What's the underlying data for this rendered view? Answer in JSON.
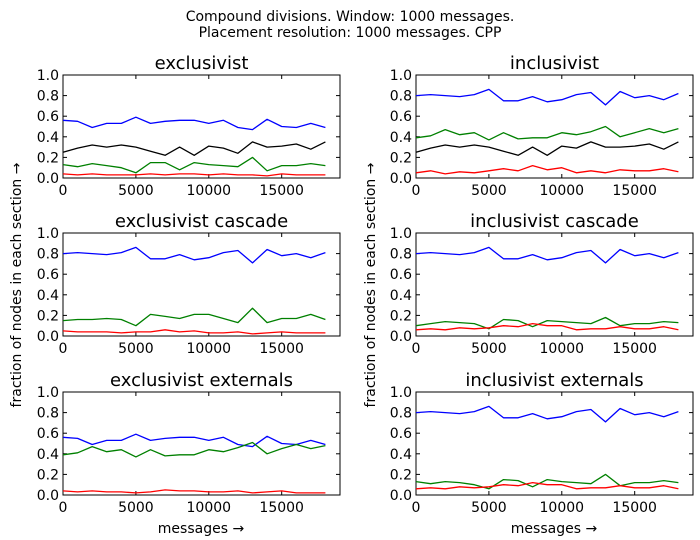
{
  "figure": {
    "title_line1": "Compound divisions. Window: 1000 messages.",
    "title_line2": "Placement resolution: 1000 messages. CPP",
    "ylabel_left": "fraction of nodes in each section  →",
    "ylabel_right": "fraction of nodes in each section  →",
    "xlabel_left": "messages  →",
    "xlabel_right": "messages  →"
  },
  "colors": {
    "blue": "#0000ff",
    "green": "#008000",
    "red": "#ff0000",
    "black": "#000000"
  },
  "chart_data": [
    {
      "type": "line",
      "title": "exclusivist",
      "xlim": [
        0,
        19000
      ],
      "ylim": [
        0,
        1
      ],
      "xticks": [
        "0",
        "5000",
        "10000",
        "15000"
      ],
      "yticks": [
        "0.0",
        "0.2",
        "0.4",
        "0.6",
        "0.8",
        "1.0"
      ],
      "x": [
        0,
        1000,
        2000,
        3000,
        4000,
        5000,
        6000,
        7000,
        8000,
        9000,
        10000,
        11000,
        12000,
        13000,
        14000,
        15000,
        16000,
        17000,
        18000
      ],
      "series": [
        {
          "color": "blue",
          "values": [
            0.56,
            0.55,
            0.49,
            0.53,
            0.53,
            0.59,
            0.53,
            0.55,
            0.56,
            0.56,
            0.53,
            0.56,
            0.49,
            0.47,
            0.57,
            0.5,
            0.49,
            0.53,
            0.49
          ]
        },
        {
          "color": "black",
          "values": [
            0.25,
            0.29,
            0.32,
            0.3,
            0.32,
            0.3,
            0.26,
            0.22,
            0.3,
            0.22,
            0.31,
            0.29,
            0.24,
            0.35,
            0.3,
            0.31,
            0.33,
            0.28,
            0.35
          ]
        },
        {
          "color": "green",
          "values": [
            0.13,
            0.11,
            0.14,
            0.12,
            0.1,
            0.05,
            0.15,
            0.15,
            0.08,
            0.15,
            0.13,
            0.12,
            0.11,
            0.2,
            0.07,
            0.12,
            0.12,
            0.14,
            0.12
          ]
        },
        {
          "color": "red",
          "values": [
            0.04,
            0.03,
            0.04,
            0.03,
            0.03,
            0.03,
            0.04,
            0.03,
            0.04,
            0.04,
            0.03,
            0.04,
            0.03,
            0.03,
            0.02,
            0.04,
            0.03,
            0.03,
            0.03
          ]
        }
      ]
    },
    {
      "type": "line",
      "title": "inclusivist",
      "xlim": [
        0,
        19000
      ],
      "ylim": [
        0,
        1
      ],
      "xticks": [
        "0",
        "5000",
        "10000",
        "15000"
      ],
      "yticks": [
        "0.0",
        "0.2",
        "0.4",
        "0.6",
        "0.8",
        "1.0"
      ],
      "x": [
        0,
        1000,
        2000,
        3000,
        4000,
        5000,
        6000,
        7000,
        8000,
        9000,
        10000,
        11000,
        12000,
        13000,
        14000,
        15000,
        16000,
        17000,
        18000
      ],
      "series": [
        {
          "color": "blue",
          "values": [
            0.8,
            0.81,
            0.8,
            0.79,
            0.81,
            0.86,
            0.75,
            0.75,
            0.79,
            0.74,
            0.76,
            0.81,
            0.83,
            0.71,
            0.84,
            0.78,
            0.8,
            0.76,
            0.82
          ]
        },
        {
          "color": "green",
          "values": [
            0.39,
            0.41,
            0.47,
            0.42,
            0.44,
            0.37,
            0.44,
            0.38,
            0.39,
            0.39,
            0.44,
            0.42,
            0.45,
            0.5,
            0.4,
            0.44,
            0.48,
            0.44,
            0.48
          ]
        },
        {
          "color": "black",
          "values": [
            0.25,
            0.29,
            0.32,
            0.3,
            0.32,
            0.3,
            0.26,
            0.22,
            0.3,
            0.22,
            0.31,
            0.29,
            0.35,
            0.3,
            0.3,
            0.31,
            0.33,
            0.28,
            0.35
          ]
        },
        {
          "color": "red",
          "values": [
            0.05,
            0.07,
            0.04,
            0.06,
            0.05,
            0.07,
            0.09,
            0.07,
            0.12,
            0.08,
            0.1,
            0.05,
            0.07,
            0.05,
            0.08,
            0.07,
            0.07,
            0.09,
            0.06
          ]
        }
      ]
    },
    {
      "type": "line",
      "title": "exclusivist cascade",
      "xlim": [
        0,
        19000
      ],
      "ylim": [
        0,
        1
      ],
      "xticks": [
        "0",
        "5000",
        "10000",
        "15000"
      ],
      "yticks": [
        "0.0",
        "0.2",
        "0.4",
        "0.6",
        "0.8",
        "1.0"
      ],
      "x": [
        0,
        1000,
        2000,
        3000,
        4000,
        5000,
        6000,
        7000,
        8000,
        9000,
        10000,
        11000,
        12000,
        13000,
        14000,
        15000,
        16000,
        17000,
        18000
      ],
      "series": [
        {
          "color": "blue",
          "values": [
            0.8,
            0.81,
            0.8,
            0.79,
            0.81,
            0.86,
            0.75,
            0.75,
            0.79,
            0.74,
            0.76,
            0.81,
            0.83,
            0.71,
            0.84,
            0.78,
            0.8,
            0.76,
            0.81
          ]
        },
        {
          "color": "green",
          "values": [
            0.15,
            0.16,
            0.16,
            0.17,
            0.16,
            0.1,
            0.21,
            0.19,
            0.17,
            0.21,
            0.21,
            0.17,
            0.13,
            0.27,
            0.13,
            0.17,
            0.17,
            0.21,
            0.16
          ]
        },
        {
          "color": "red",
          "values": [
            0.05,
            0.04,
            0.04,
            0.04,
            0.03,
            0.04,
            0.04,
            0.06,
            0.04,
            0.05,
            0.03,
            0.03,
            0.04,
            0.02,
            0.03,
            0.04,
            0.03,
            0.03,
            0.03
          ]
        }
      ]
    },
    {
      "type": "line",
      "title": "inclusivist cascade",
      "xlim": [
        0,
        19000
      ],
      "ylim": [
        0,
        1
      ],
      "xticks": [
        "0",
        "5000",
        "10000",
        "15000"
      ],
      "yticks": [
        "0.0",
        "0.2",
        "0.4",
        "0.6",
        "0.8",
        "1.0"
      ],
      "x": [
        0,
        1000,
        2000,
        3000,
        4000,
        5000,
        6000,
        7000,
        8000,
        9000,
        10000,
        11000,
        12000,
        13000,
        14000,
        15000,
        16000,
        17000,
        18000
      ],
      "series": [
        {
          "color": "blue",
          "values": [
            0.8,
            0.81,
            0.8,
            0.79,
            0.81,
            0.86,
            0.75,
            0.75,
            0.79,
            0.74,
            0.76,
            0.81,
            0.83,
            0.71,
            0.84,
            0.78,
            0.8,
            0.76,
            0.81
          ]
        },
        {
          "color": "green",
          "values": [
            0.1,
            0.12,
            0.14,
            0.13,
            0.12,
            0.07,
            0.16,
            0.15,
            0.09,
            0.15,
            0.14,
            0.13,
            0.12,
            0.18,
            0.1,
            0.12,
            0.12,
            0.14,
            0.13
          ]
        },
        {
          "color": "red",
          "values": [
            0.06,
            0.07,
            0.06,
            0.08,
            0.07,
            0.08,
            0.1,
            0.09,
            0.12,
            0.1,
            0.1,
            0.06,
            0.07,
            0.07,
            0.09,
            0.07,
            0.07,
            0.09,
            0.06
          ]
        }
      ]
    },
    {
      "type": "line",
      "title": "exclusivist externals",
      "xlim": [
        0,
        19000
      ],
      "ylim": [
        0,
        1
      ],
      "xticks": [
        "0",
        "5000",
        "10000",
        "15000"
      ],
      "yticks": [
        "0.0",
        "0.2",
        "0.4",
        "0.6",
        "0.8",
        "1.0"
      ],
      "x": [
        0,
        1000,
        2000,
        3000,
        4000,
        5000,
        6000,
        7000,
        8000,
        9000,
        10000,
        11000,
        12000,
        13000,
        14000,
        15000,
        16000,
        17000,
        18000
      ],
      "series": [
        {
          "color": "blue",
          "values": [
            0.56,
            0.55,
            0.49,
            0.53,
            0.53,
            0.59,
            0.53,
            0.55,
            0.56,
            0.56,
            0.53,
            0.56,
            0.49,
            0.47,
            0.57,
            0.5,
            0.49,
            0.53,
            0.49
          ]
        },
        {
          "color": "green",
          "values": [
            0.39,
            0.41,
            0.47,
            0.42,
            0.44,
            0.37,
            0.44,
            0.38,
            0.39,
            0.39,
            0.44,
            0.42,
            0.46,
            0.51,
            0.4,
            0.45,
            0.49,
            0.45,
            0.48
          ]
        },
        {
          "color": "red",
          "values": [
            0.04,
            0.03,
            0.04,
            0.03,
            0.03,
            0.02,
            0.03,
            0.05,
            0.04,
            0.04,
            0.03,
            0.03,
            0.04,
            0.02,
            0.03,
            0.04,
            0.02,
            0.02,
            0.02
          ]
        }
      ]
    },
    {
      "type": "line",
      "title": "inclusivist externals",
      "xlim": [
        0,
        19000
      ],
      "ylim": [
        0,
        1
      ],
      "xticks": [
        "0",
        "5000",
        "10000",
        "15000"
      ],
      "yticks": [
        "0.0",
        "0.2",
        "0.4",
        "0.6",
        "0.8",
        "1.0"
      ],
      "x": [
        0,
        1000,
        2000,
        3000,
        4000,
        5000,
        6000,
        7000,
        8000,
        9000,
        10000,
        11000,
        12000,
        13000,
        14000,
        15000,
        16000,
        17000,
        18000
      ],
      "series": [
        {
          "color": "blue",
          "values": [
            0.8,
            0.81,
            0.8,
            0.79,
            0.81,
            0.86,
            0.75,
            0.75,
            0.79,
            0.74,
            0.76,
            0.81,
            0.83,
            0.71,
            0.84,
            0.78,
            0.8,
            0.76,
            0.81
          ]
        },
        {
          "color": "green",
          "values": [
            0.13,
            0.11,
            0.13,
            0.12,
            0.1,
            0.06,
            0.15,
            0.14,
            0.08,
            0.15,
            0.13,
            0.12,
            0.11,
            0.2,
            0.09,
            0.12,
            0.12,
            0.14,
            0.12
          ]
        },
        {
          "color": "red",
          "values": [
            0.06,
            0.07,
            0.06,
            0.08,
            0.07,
            0.08,
            0.1,
            0.09,
            0.12,
            0.1,
            0.1,
            0.06,
            0.07,
            0.07,
            0.09,
            0.07,
            0.07,
            0.09,
            0.06
          ]
        }
      ]
    }
  ]
}
